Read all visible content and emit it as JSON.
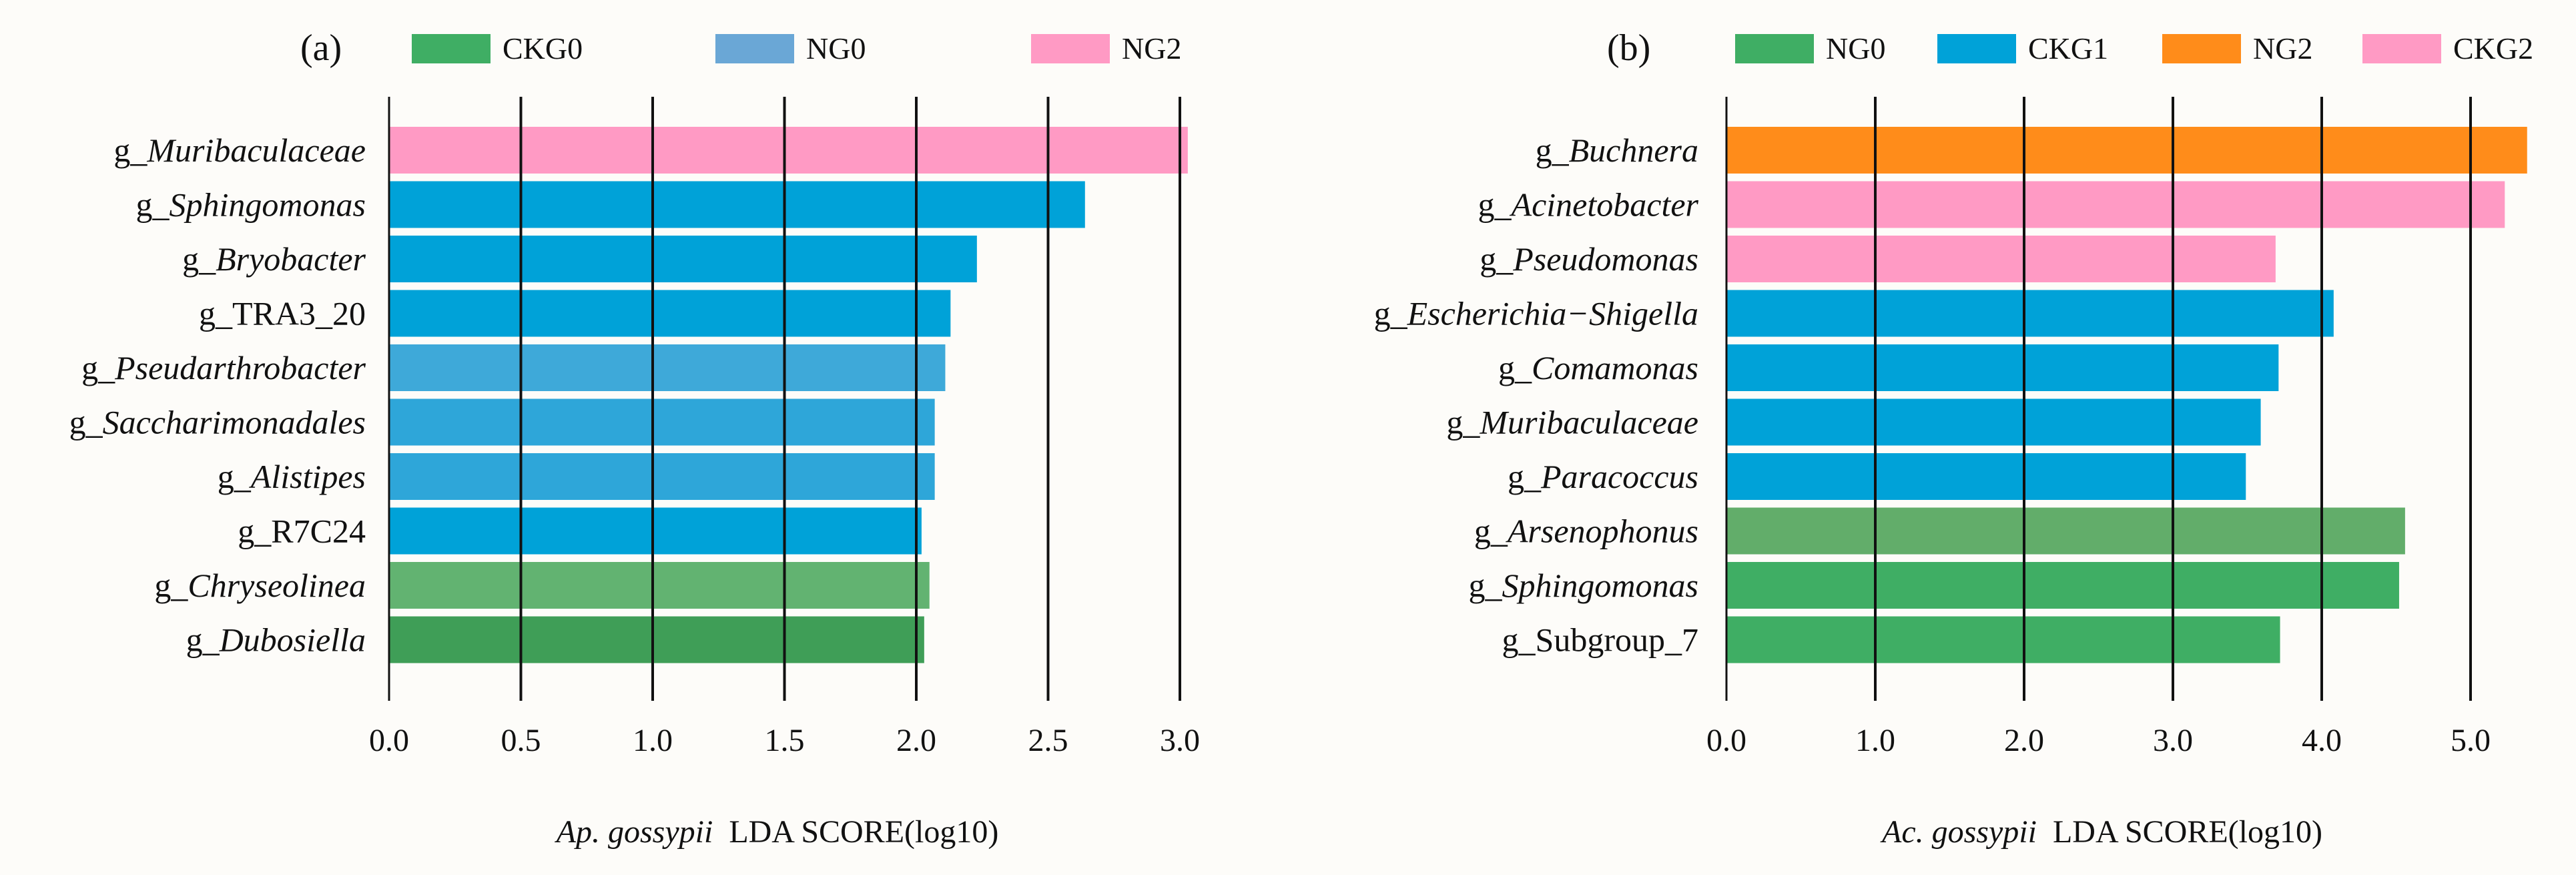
{
  "chart_data": [
    {
      "type": "bar",
      "orientation": "horizontal",
      "panel_label": "(a)",
      "legend": [
        {
          "name": "CKG0",
          "color": "#3fae64"
        },
        {
          "name": "NG0",
          "color": "#6aa7d6"
        },
        {
          "name": "NG2",
          "color": "#ff9ac4"
        }
      ],
      "categories": [
        {
          "prefix": "g_",
          "name": "Muribaculaceae",
          "italic": true
        },
        {
          "prefix": "g_",
          "name": "Sphingomonas",
          "italic": true
        },
        {
          "prefix": "g_",
          "name": "Bryobacter",
          "italic": true
        },
        {
          "prefix": "g_",
          "name": "TRA3_20",
          "italic": false
        },
        {
          "prefix": "g_",
          "name": "Pseudarthrobacter",
          "italic": true
        },
        {
          "prefix": "g_",
          "name": "Saccharimonadales",
          "italic": true
        },
        {
          "prefix": "g_",
          "name": "Alistipes",
          "italic": true
        },
        {
          "prefix": "g_",
          "name": "R7C24",
          "italic": false
        },
        {
          "prefix": "g_",
          "name": "Chryseolinea",
          "italic": true
        },
        {
          "prefix": "g_",
          "name": "Dubosiella",
          "italic": true
        }
      ],
      "values": [
        3.03,
        2.64,
        2.23,
        2.13,
        2.11,
        2.07,
        2.07,
        2.02,
        2.05,
        2.03
      ],
      "bar_colors": [
        "#ff9ac4",
        "#00a2d8",
        "#00a2d8",
        "#00a2d8",
        "#3ea9d9",
        "#2ea6d9",
        "#2ea6d9",
        "#00a2d8",
        "#62b371",
        "#3f9e57"
      ],
      "xlim": [
        0,
        3.1
      ],
      "ticks": [
        0.0,
        0.5,
        1.0,
        1.5,
        2.0,
        2.5,
        3.0
      ],
      "tick_labels": [
        "0.0",
        "0.5",
        "1.0",
        "1.5",
        "2.0",
        "2.5",
        "3.0"
      ],
      "xlabel_italic": "Ap. gossypii",
      "xlabel_rest": "LDA SCORE(log10)"
    },
    {
      "type": "bar",
      "orientation": "horizontal",
      "panel_label": "(b)",
      "legend": [
        {
          "name": "NG0",
          "color": "#3fae64"
        },
        {
          "name": "CKG1",
          "color": "#00a2d8"
        },
        {
          "name": "NG2",
          "color": "#ff8c1a"
        },
        {
          "name": "CKG2",
          "color": "#ff9ac4"
        }
      ],
      "categories": [
        {
          "prefix": "g_",
          "name": "Buchnera",
          "italic": true
        },
        {
          "prefix": "g_",
          "name": "Acinetobacter",
          "italic": true
        },
        {
          "prefix": "g_",
          "name": "Pseudomonas",
          "italic": true
        },
        {
          "prefix": "g_",
          "name": "Escherichia−Shigella",
          "italic": true
        },
        {
          "prefix": "g_",
          "name": "Comamonas",
          "italic": true
        },
        {
          "prefix": "g_",
          "name": "Muribaculaceae",
          "italic": true
        },
        {
          "prefix": "g_",
          "name": "Paracoccus",
          "italic": true
        },
        {
          "prefix": "g_",
          "name": "Arsenophonus",
          "italic": true
        },
        {
          "prefix": "g_",
          "name": "Sphingomonas",
          "italic": true
        },
        {
          "prefix": "g_",
          "name": "Subgroup_7",
          "italic": false
        }
      ],
      "values": [
        5.38,
        5.23,
        3.69,
        4.08,
        3.71,
        3.59,
        3.49,
        4.56,
        4.52,
        3.72
      ],
      "bar_colors": [
        "#ff8c1a",
        "#ff9ac4",
        "#ff9ac4",
        "#00a2d8",
        "#00a2d8",
        "#00a2d8",
        "#00a2d8",
        "#62ad6a",
        "#3fae64",
        "#3fae64"
      ],
      "xlim": [
        0,
        5.4
      ],
      "ticks": [
        0.0,
        1.0,
        2.0,
        3.0,
        4.0,
        5.0
      ],
      "tick_labels": [
        "0.0",
        "1.0",
        "2.0",
        "3.0",
        "4.0",
        "5.0"
      ],
      "xlabel_italic": "Ac. gossypii",
      "xlabel_rest": "LDA SCORE(log10)"
    }
  ]
}
